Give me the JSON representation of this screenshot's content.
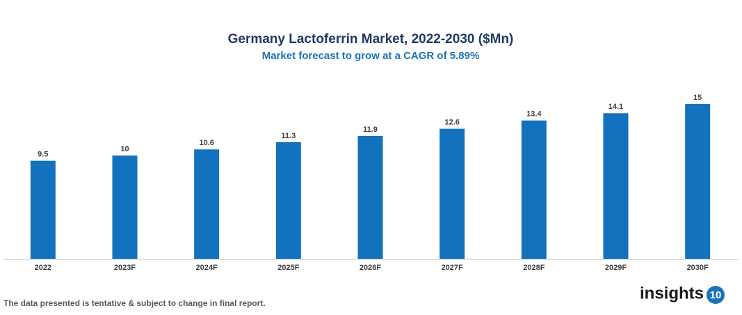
{
  "chart_data": {
    "type": "bar",
    "title": "Germany Lactoferrin Market, 2022-2030 ($Mn)",
    "subtitle": "Market forecast to grow at a CAGR of 5.89%",
    "categories": [
      "2022",
      "2023F",
      "2024F",
      "2025F",
      "2026F",
      "2027F",
      "2028F",
      "2029F",
      "2030F"
    ],
    "values": [
      9.5,
      10,
      10.6,
      11.3,
      11.9,
      12.6,
      13.4,
      14.1,
      15
    ],
    "color": "#1272bd",
    "ylim": [
      0,
      16
    ],
    "grid": false
  },
  "footnote": "The data presented is tentative & subject to change in final report.",
  "logo": {
    "text": "insights",
    "badge": "10"
  }
}
